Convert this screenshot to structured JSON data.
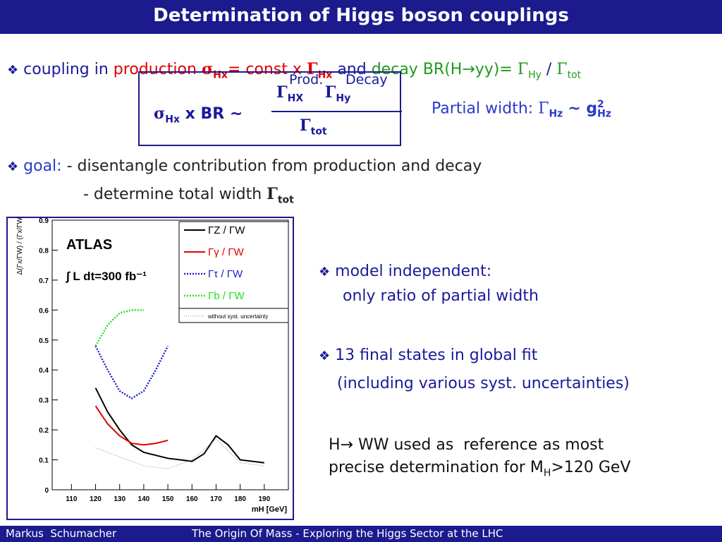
{
  "header": {
    "title": "Determination of Higgs boson couplings"
  },
  "bullet": "❖",
  "line1": [
    "coupling in",
    "production",
    "σ",
    "Hx",
    "= const x",
    "Γ",
    "Hx",
    "and",
    "decay",
    "BR(H→yy)=",
    "Γ",
    "Hy",
    "/",
    "Γ",
    "tot"
  ],
  "formula": {
    "top_labels": [
      "Prod.",
      "Decay"
    ],
    "numerator": [
      "Γ",
      "HX",
      "Γ",
      "Hy"
    ],
    "denominator": [
      "Γ",
      "tot"
    ],
    "lhs": [
      "σ",
      "Hx",
      "x BR ~"
    ]
  },
  "partial": [
    "Partial width:",
    "Γ",
    "Hz",
    "~ g",
    "Hz",
    "2"
  ],
  "goal": [
    "goal:",
    "- disentangle contribution from production and decay",
    "- determine total width",
    "Γ",
    "tot"
  ],
  "right": [
    "model independent:",
    "only ratio of partial width",
    "13 final states in global fit",
    "(including various syst. uncertainties)",
    "H→ WW used as  reference as most",
    "precise determination for M",
    "H",
    ">120 GeV"
  ],
  "footer": [
    "Markus  Schumacher",
    "The Origin Of Mass - Exploring the Higgs Sector at the LHC"
  ],
  "chart_data": {
    "type": "line",
    "ylabel": "Δ(Γx/ΓW) / (Γx/ΓW)",
    "xlabel": "mH [GeV]",
    "annotations": [
      "ATLAS",
      "∫ L dt=300 fb⁻¹"
    ],
    "xlim": [
      102,
      200
    ],
    "xticks": [
      110,
      120,
      130,
      140,
      150,
      160,
      170,
      180,
      190
    ],
    "ylim": [
      0,
      0.9
    ],
    "yticks": [
      0,
      0.1,
      0.2,
      0.3,
      0.4,
      0.5,
      0.6,
      0.7,
      0.8,
      0.9
    ],
    "series": [
      {
        "name": "ΓZ / ΓW",
        "color": "#000000",
        "style": "solid",
        "x": [
          120,
          125,
          130,
          135,
          140,
          150,
          160,
          165,
          170,
          175,
          180,
          190
        ],
        "values": [
          0.34,
          0.26,
          0.2,
          0.15,
          0.125,
          0.105,
          0.095,
          0.12,
          0.18,
          0.15,
          0.1,
          0.09
        ]
      },
      {
        "name": "Γγ / ΓW",
        "color": "#e00000",
        "style": "solid",
        "x": [
          120,
          125,
          130,
          135,
          140,
          145,
          150
        ],
        "values": [
          0.28,
          0.22,
          0.18,
          0.155,
          0.15,
          0.155,
          0.165
        ]
      },
      {
        "name": "Γτ / ΓW",
        "color": "#2020d0",
        "style": "dotted",
        "x": [
          120,
          125,
          130,
          135,
          140,
          145,
          150
        ],
        "values": [
          0.48,
          0.4,
          0.33,
          0.305,
          0.33,
          0.4,
          0.48
        ]
      },
      {
        "name": "Γb / ΓW",
        "color": "#20e020",
        "style": "dotted",
        "x": [
          120,
          125,
          130,
          135,
          140
        ],
        "values": [
          0.48,
          0.55,
          0.59,
          0.6,
          0.6
        ]
      },
      {
        "name": "without syst. uncertainty",
        "color": "#888888",
        "style": "thin",
        "x": [
          120,
          130,
          140,
          150,
          160,
          170,
          180,
          190
        ],
        "values": [
          0.14,
          0.11,
          0.08,
          0.07,
          0.1,
          0.17,
          0.09,
          0.08
        ]
      }
    ]
  }
}
